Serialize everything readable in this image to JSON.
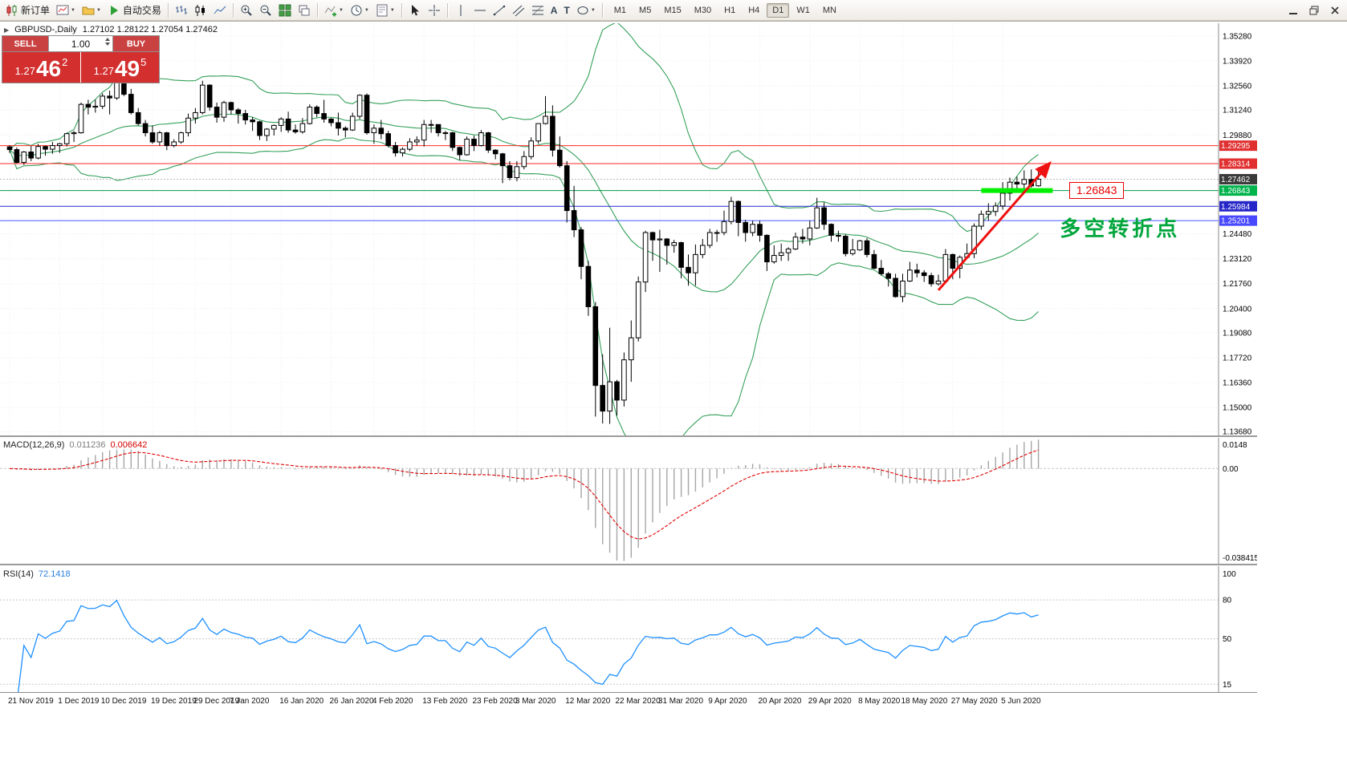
{
  "toolbar": {
    "new_order_label": "新订单",
    "autotrading_label": "自动交易",
    "timeframes": [
      "M1",
      "M5",
      "M15",
      "M30",
      "H1",
      "H4",
      "D1",
      "W1",
      "MN"
    ],
    "active_timeframe": "D1"
  },
  "header": {
    "symbol_period": "GBPUSD-,Daily",
    "ohlc": "1.27102 1.28122 1.27054 1.27462"
  },
  "trade": {
    "sell_label": "SELL",
    "buy_label": "BUY",
    "volume": "1.00",
    "sell_prefix": "1.27",
    "sell_big": "46",
    "sell_sup": "2",
    "buy_prefix": "1.27",
    "buy_big": "49",
    "buy_sup": "5"
  },
  "chart_data": {
    "type": "candlestick",
    "symbol": "GBPUSD-",
    "timeframe": "Daily",
    "price_range": [
      1.1347,
      1.3598
    ],
    "price_axis_ticks": [
      "1.35280",
      "1.33920",
      "1.32560",
      "1.31240",
      "1.29880",
      "1.24480",
      "1.23120",
      "1.21760",
      "1.20400",
      "1.19080",
      "1.17720",
      "1.16360",
      "1.15000",
      "1.13680"
    ],
    "tags": [
      {
        "value": 1.29295,
        "label": "1.29295",
        "bg": "#e03030",
        "line": "#ff2a2a"
      },
      {
        "value": 1.28314,
        "label": "1.28314",
        "bg": "#e03030",
        "line": "#ff2a2a"
      },
      {
        "value": 1.27462,
        "label": "1.27462",
        "bg": "#3a3a3a",
        "line": "#b8b8b8",
        "dash": "2 2"
      },
      {
        "value": 1.26843,
        "label": "1.26843",
        "bg": "#00b44c",
        "line": "#009944"
      },
      {
        "value": 1.25984,
        "label": "1.25984",
        "bg": "#2626c8",
        "line": "#2a2ad0"
      },
      {
        "value": 1.25201,
        "label": "1.25201",
        "bg": "#4848ff",
        "line": "#4858ff"
      }
    ],
    "bollinger": {
      "period": 20,
      "deviation": 2,
      "color": "#35a05a"
    },
    "macd": {
      "label": "MACD(12,26,9)",
      "main_value": "0.011236",
      "signal_value": "0.006642",
      "axis_max": "0.0148",
      "axis_zero": "0.00",
      "axis_min": "-0.038415"
    },
    "rsi": {
      "label": "RSI(14)",
      "value": "72.1418",
      "period": 14,
      "range": [
        9,
        106
      ],
      "color": "#1e90ff",
      "levels": [
        {
          "v": 100,
          "t": "100",
          "line": false
        },
        {
          "v": 80,
          "t": "80",
          "line": true
        },
        {
          "v": 50,
          "t": "50",
          "line": true
        },
        {
          "v": 15,
          "t": "15",
          "line": true
        }
      ]
    },
    "annotations": {
      "green_segment": {
        "from_index": 136,
        "to_index": 146,
        "price": 1.26843,
        "color": "#00f000"
      },
      "trend_arrow": {
        "from_index": 130,
        "from_price": 1.214,
        "to_index": 145.6,
        "to_price": 1.2835,
        "color": "#ee1111"
      },
      "level_box": {
        "text": "1.26843",
        "anchor_index": 148.3,
        "anchor_price": 1.26843,
        "color": "#e80000"
      },
      "turning_note": {
        "text": "多空转折点",
        "anchor_index": 147,
        "anchor_price": 1.2565,
        "color": "#00a63c"
      }
    },
    "date_labels": [
      {
        "i": 0,
        "t": "21 Nov 2019"
      },
      {
        "i": 7,
        "t": "1 Dec 2019"
      },
      {
        "i": 13,
        "t": "10 Dec 2019"
      },
      {
        "i": 20,
        "t": "19 Dec 2019"
      },
      {
        "i": 26,
        "t": "29 Dec 2019"
      },
      {
        "i": 31,
        "t": "7 Jan 2020"
      },
      {
        "i": 38,
        "t": "16 Jan 2020"
      },
      {
        "i": 45,
        "t": "26 Jan 2020"
      },
      {
        "i": 51,
        "t": "4 Feb 2020"
      },
      {
        "i": 58,
        "t": "13 Feb 2020"
      },
      {
        "i": 65,
        "t": "23 Feb 2020"
      },
      {
        "i": 71,
        "t": "3 Mar 2020"
      },
      {
        "i": 78,
        "t": "12 Mar 2020"
      },
      {
        "i": 85,
        "t": "22 Mar 2020"
      },
      {
        "i": 91,
        "t": "31 Mar 2020"
      },
      {
        "i": 98,
        "t": "9 Apr 2020"
      },
      {
        "i": 105,
        "t": "20 Apr 2020"
      },
      {
        "i": 112,
        "t": "29 Apr 2020"
      },
      {
        "i": 119,
        "t": "8 May 2020"
      },
      {
        "i": 125,
        "t": "18 May 2020"
      },
      {
        "i": 132,
        "t": "27 May 2020"
      },
      {
        "i": 139,
        "t": "5 Jun 2020"
      }
    ],
    "candles": [
      [
        1.2923,
        1.2932,
        1.289,
        1.2908
      ],
      [
        1.2908,
        1.292,
        1.2833,
        1.2838
      ],
      [
        1.2838,
        1.29,
        1.2825,
        1.2895
      ],
      [
        1.2895,
        1.2928,
        1.2845,
        1.2862
      ],
      [
        1.2862,
        1.294,
        1.2855,
        1.2925
      ],
      [
        1.2925,
        1.293,
        1.2875,
        1.291
      ],
      [
        1.291,
        1.295,
        1.2885,
        1.293
      ],
      [
        1.293,
        1.2945,
        1.289,
        1.294
      ],
      [
        1.294,
        1.3,
        1.2925,
        1.2995
      ],
      [
        1.2995,
        1.301,
        1.295,
        1.3
      ],
      [
        1.3,
        1.3165,
        1.2995,
        1.3155
      ],
      [
        1.3155,
        1.318,
        1.31,
        1.314
      ],
      [
        1.314,
        1.318,
        1.311,
        1.3145
      ],
      [
        1.3145,
        1.3215,
        1.313,
        1.32
      ],
      [
        1.32,
        1.323,
        1.31,
        1.319
      ],
      [
        1.319,
        1.333,
        1.318,
        1.3315
      ],
      [
        1.3315,
        1.3335,
        1.32,
        1.321
      ],
      [
        1.321,
        1.324,
        1.31,
        1.311
      ],
      [
        1.311,
        1.3135,
        1.304,
        1.305
      ],
      [
        1.305,
        1.307,
        1.298,
        1.3
      ],
      [
        1.3,
        1.304,
        1.294,
        1.295
      ],
      [
        1.295,
        1.301,
        1.293,
        1.3
      ],
      [
        1.3,
        1.3005,
        1.2905,
        1.293
      ],
      [
        1.293,
        1.2965,
        1.292,
        1.295
      ],
      [
        1.295,
        1.3005,
        1.294,
        1.3
      ],
      [
        1.3,
        1.3105,
        1.298,
        1.308
      ],
      [
        1.308,
        1.3135,
        1.305,
        1.311
      ],
      [
        1.311,
        1.3284,
        1.31,
        1.326
      ],
      [
        1.326,
        1.3265,
        1.312,
        1.314
      ],
      [
        1.314,
        1.3165,
        1.3055,
        1.3085
      ],
      [
        1.3085,
        1.3175,
        1.306,
        1.3165
      ],
      [
        1.3165,
        1.317,
        1.31,
        1.3125
      ],
      [
        1.3125,
        1.3135,
        1.305,
        1.3105
      ],
      [
        1.3105,
        1.3125,
        1.3045,
        1.307
      ],
      [
        1.307,
        1.3085,
        1.301,
        1.306
      ],
      [
        1.306,
        1.3065,
        1.296,
        1.2985
      ],
      [
        1.2985,
        1.3025,
        1.2955,
        1.302
      ],
      [
        1.302,
        1.3045,
        1.2985,
        1.304
      ],
      [
        1.304,
        1.3085,
        1.3005,
        1.3075
      ],
      [
        1.3075,
        1.3115,
        1.3,
        1.3015
      ],
      [
        1.3015,
        1.3045,
        1.2995,
        1.3005
      ],
      [
        1.3005,
        1.308,
        1.2995,
        1.305
      ],
      [
        1.305,
        1.3155,
        1.3045,
        1.314
      ],
      [
        1.314,
        1.315,
        1.3085,
        1.3105
      ],
      [
        1.3105,
        1.318,
        1.3055,
        1.3075
      ],
      [
        1.3075,
        1.308,
        1.3035,
        1.3055
      ],
      [
        1.3055,
        1.311,
        1.2985,
        1.3025
      ],
      [
        1.3025,
        1.3035,
        1.2975,
        1.3015
      ],
      [
        1.3015,
        1.311,
        1.301,
        1.309
      ],
      [
        1.309,
        1.321,
        1.3075,
        1.3205
      ],
      [
        1.3205,
        1.3215,
        1.299,
        1.3
      ],
      [
        1.3,
        1.3045,
        1.294,
        1.3025
      ],
      [
        1.3025,
        1.307,
        1.2965,
        1.2995
      ],
      [
        1.2995,
        1.301,
        1.292,
        1.293
      ],
      [
        1.293,
        1.295,
        1.287,
        1.289
      ],
      [
        1.289,
        1.292,
        1.287,
        1.291
      ],
      [
        1.291,
        1.297,
        1.29,
        1.295
      ],
      [
        1.295,
        1.298,
        1.293,
        1.296
      ],
      [
        1.296,
        1.307,
        1.2925,
        1.3045
      ],
      [
        1.3045,
        1.307,
        1.3,
        1.3045
      ],
      [
        1.3045,
        1.3045,
        1.298,
        1.3
      ],
      [
        1.3,
        1.301,
        1.296,
        1.3
      ],
      [
        1.3,
        1.3005,
        1.29,
        1.292
      ],
      [
        1.292,
        1.2925,
        1.285,
        1.288
      ],
      [
        1.288,
        1.298,
        1.2875,
        1.2965
      ],
      [
        1.2965,
        1.2985,
        1.29,
        1.293
      ],
      [
        1.293,
        1.3015,
        1.2925,
        1.3
      ],
      [
        1.3,
        1.3005,
        1.289,
        1.2905
      ],
      [
        1.2905,
        1.291,
        1.2855,
        1.2885
      ],
      [
        1.2885,
        1.289,
        1.2725,
        1.282
      ],
      [
        1.282,
        1.2845,
        1.274,
        1.2755
      ],
      [
        1.2755,
        1.2845,
        1.2735,
        1.2815
      ],
      [
        1.2815,
        1.29,
        1.28,
        1.287
      ],
      [
        1.287,
        1.2975,
        1.2855,
        1.2955
      ],
      [
        1.2955,
        1.305,
        1.294,
        1.305
      ],
      [
        1.305,
        1.32,
        1.3045,
        1.309
      ],
      [
        1.309,
        1.315,
        1.287,
        1.2905
      ],
      [
        1.2905,
        1.298,
        1.281,
        1.282
      ],
      [
        1.282,
        1.2845,
        1.251,
        1.2575
      ],
      [
        1.2575,
        1.271,
        1.243,
        1.247
      ],
      [
        1.247,
        1.2485,
        1.22,
        1.227
      ],
      [
        1.227,
        1.23,
        1.2,
        1.205
      ],
      [
        1.205,
        1.2075,
        1.145,
        1.162
      ],
      [
        1.162,
        1.179,
        1.1412,
        1.148
      ],
      [
        1.148,
        1.1935,
        1.141,
        1.164
      ],
      [
        1.164,
        1.165,
        1.1455,
        1.154
      ],
      [
        1.154,
        1.18,
        1.1505,
        1.176
      ],
      [
        1.176,
        1.1975,
        1.164,
        1.188
      ],
      [
        1.188,
        1.2215,
        1.186,
        1.2185
      ],
      [
        1.2185,
        1.2465,
        1.213,
        1.2455
      ],
      [
        1.2455,
        1.246,
        1.23,
        1.2415
      ],
      [
        1.2415,
        1.247,
        1.224,
        1.242
      ],
      [
        1.242,
        1.2425,
        1.228,
        1.2385
      ],
      [
        1.2385,
        1.2415,
        1.2345,
        1.24
      ],
      [
        1.24,
        1.2405,
        1.2205,
        1.2265
      ],
      [
        1.2265,
        1.2335,
        1.2165,
        1.2235
      ],
      [
        1.2235,
        1.239,
        1.2165,
        1.2335
      ],
      [
        1.2335,
        1.242,
        1.2315,
        1.2385
      ],
      [
        1.2385,
        1.2475,
        1.237,
        1.2455
      ],
      [
        1.2455,
        1.247,
        1.2405,
        1.2455
      ],
      [
        1.2455,
        1.2575,
        1.244,
        1.2515
      ],
      [
        1.2515,
        1.265,
        1.25,
        1.2625
      ],
      [
        1.2625,
        1.263,
        1.2435,
        1.251
      ],
      [
        1.251,
        1.2525,
        1.2405,
        1.2455
      ],
      [
        1.2455,
        1.252,
        1.2435,
        1.25
      ],
      [
        1.25,
        1.252,
        1.2405,
        1.244
      ],
      [
        1.244,
        1.2445,
        1.2245,
        1.2295
      ],
      [
        1.2295,
        1.2385,
        1.2285,
        1.233
      ],
      [
        1.233,
        1.2395,
        1.23,
        1.2345
      ],
      [
        1.2345,
        1.2375,
        1.23,
        1.2365
      ],
      [
        1.2365,
        1.2455,
        1.236,
        1.243
      ],
      [
        1.243,
        1.2475,
        1.2395,
        1.242
      ],
      [
        1.242,
        1.252,
        1.2385,
        1.248
      ],
      [
        1.248,
        1.2645,
        1.2475,
        1.259
      ],
      [
        1.259,
        1.262,
        1.247,
        1.25
      ],
      [
        1.25,
        1.2505,
        1.2405,
        1.244
      ],
      [
        1.244,
        1.2465,
        1.2405,
        1.2435
      ],
      [
        1.2435,
        1.2445,
        1.2325,
        1.234
      ],
      [
        1.234,
        1.242,
        1.233,
        1.236
      ],
      [
        1.236,
        1.2415,
        1.2355,
        1.241
      ],
      [
        1.241,
        1.2425,
        1.232,
        1.2335
      ],
      [
        1.2335,
        1.236,
        1.2255,
        1.226
      ],
      [
        1.226,
        1.2305,
        1.222,
        1.223
      ],
      [
        1.223,
        1.224,
        1.216,
        1.2205
      ],
      [
        1.2205,
        1.223,
        1.21,
        1.2105
      ],
      [
        1.2105,
        1.223,
        1.2075,
        1.219
      ],
      [
        1.219,
        1.2295,
        1.2185,
        1.225
      ],
      [
        1.225,
        1.2285,
        1.221,
        1.2235
      ],
      [
        1.2235,
        1.225,
        1.2185,
        1.222
      ],
      [
        1.222,
        1.2235,
        1.216,
        1.2175
      ],
      [
        1.2175,
        1.2225,
        1.2165,
        1.219
      ],
      [
        1.219,
        1.2365,
        1.218,
        1.2335
      ],
      [
        1.2335,
        1.234,
        1.22,
        1.226
      ],
      [
        1.226,
        1.233,
        1.2205,
        1.232
      ],
      [
        1.232,
        1.2395,
        1.2315,
        1.234
      ],
      [
        1.234,
        1.2505,
        1.2315,
        1.249
      ],
      [
        1.249,
        1.2575,
        1.247,
        1.2555
      ],
      [
        1.2555,
        1.2615,
        1.252,
        1.257
      ],
      [
        1.257,
        1.262,
        1.2545,
        1.26
      ],
      [
        1.26,
        1.273,
        1.258,
        1.267
      ],
      [
        1.267,
        1.2755,
        1.263,
        1.273
      ],
      [
        1.273,
        1.276,
        1.268,
        1.272
      ],
      [
        1.272,
        1.2795,
        1.269,
        1.2745
      ],
      [
        1.2745,
        1.28,
        1.27,
        1.271
      ],
      [
        1.27102,
        1.28122,
        1.27054,
        1.27462
      ]
    ]
  }
}
